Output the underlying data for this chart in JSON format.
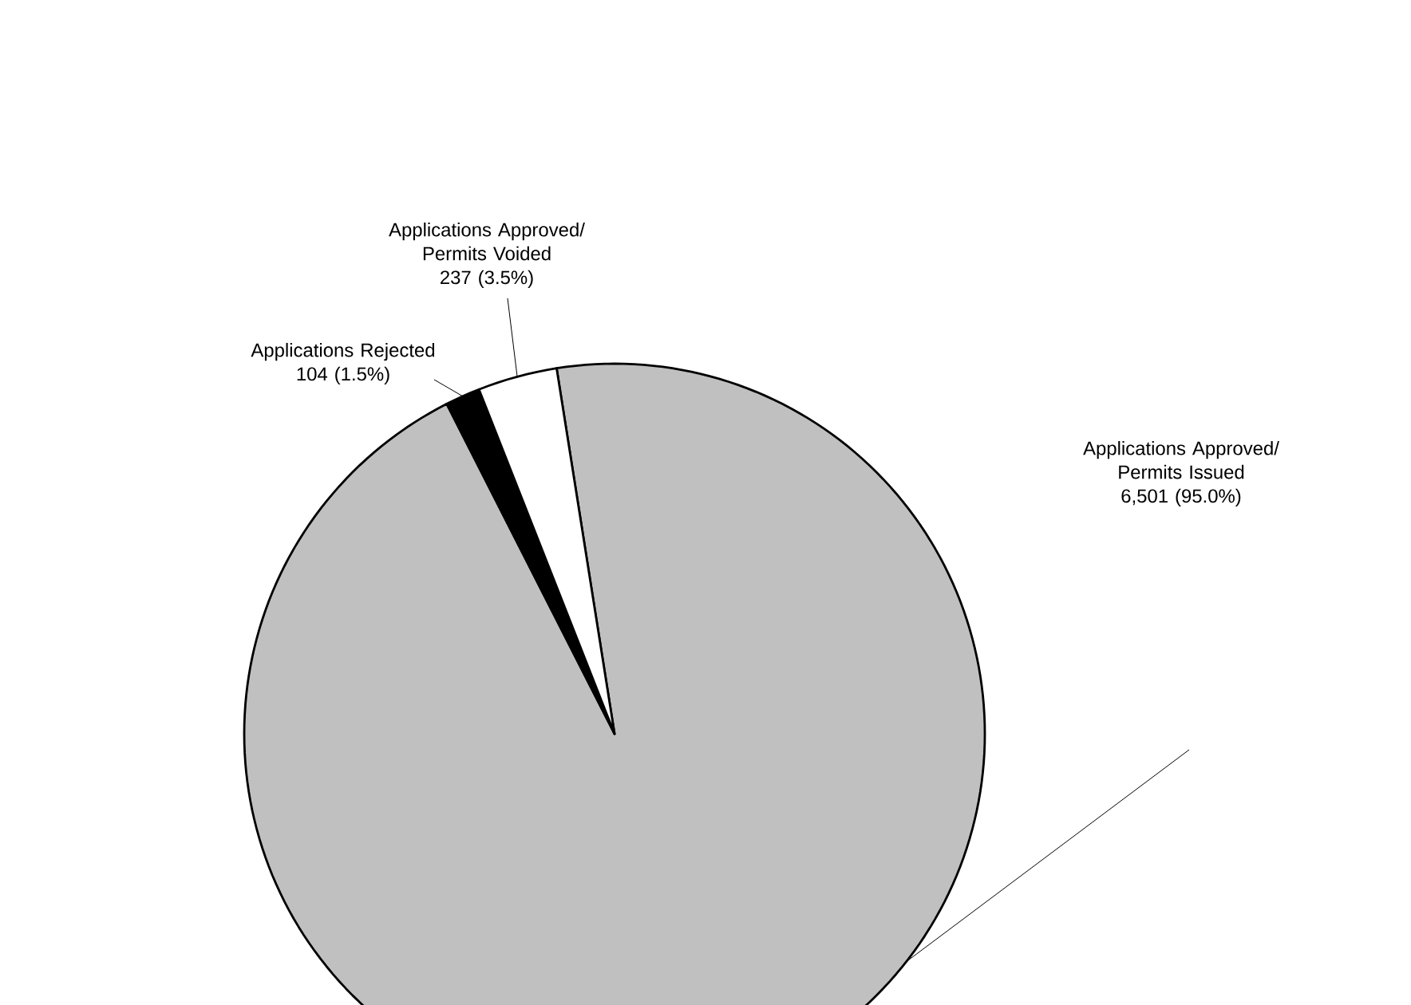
{
  "chart_data": {
    "type": "pie",
    "categories": [
      "Applications Approved/ Permits Issued",
      "Applications Rejected",
      "Applications Approved/ Permits Voided"
    ],
    "values": [
      6501,
      104,
      237
    ],
    "value_labels": [
      "6,501 (95.0%)",
      "104 (1.5%)",
      "237 (3.5%)"
    ],
    "colors": [
      "#c0c0c0",
      "#000000",
      "#ffffff"
    ]
  }
}
